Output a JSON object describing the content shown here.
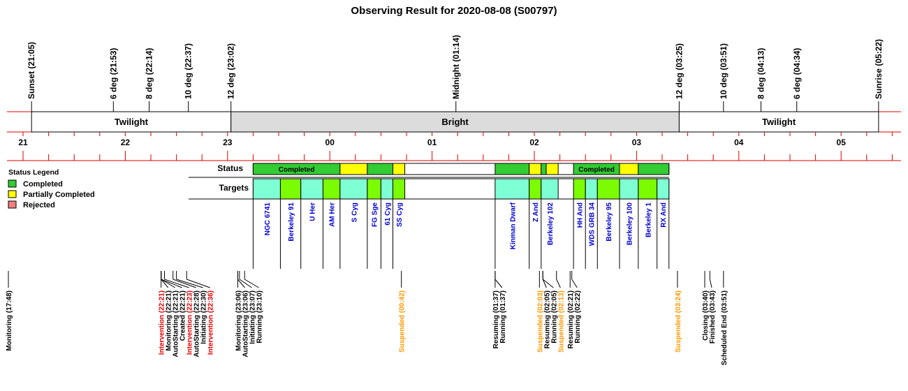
{
  "title": "Observing Result for 2020-08-08 (S00797)",
  "time_markers": [
    {
      "label": "Sunset (21:05)",
      "t": "21:05"
    },
    {
      "label": "6 deg (21:53)",
      "t": "21:53"
    },
    {
      "label": "8 deg (22:14)",
      "t": "22:14"
    },
    {
      "label": "10 deg (22:37)",
      "t": "22:37"
    },
    {
      "label": "12 deg (23:02)",
      "t": "23:02"
    },
    {
      "label": "Midnight (01:14)",
      "t": "01:14"
    },
    {
      "label": "12 deg (03:25)",
      "t": "03:25"
    },
    {
      "label": "10 deg (03:51)",
      "t": "03:51"
    },
    {
      "label": "8 deg (04:13)",
      "t": "04:13"
    },
    {
      "label": "6 deg (04:34)",
      "t": "04:34"
    },
    {
      "label": "Sunrise (05:22)",
      "t": "05:22"
    }
  ],
  "bands": [
    {
      "label": "Twilight",
      "start": "21:05",
      "end": "23:02",
      "color": "#ffffff"
    },
    {
      "label": "Bright",
      "start": "23:02",
      "end": "03:25",
      "color": "#dcdcdc"
    },
    {
      "label": "Twilight",
      "start": "03:25",
      "end": "05:22",
      "color": "#ffffff"
    }
  ],
  "hour_labels": [
    "21",
    "22",
    "23",
    "00",
    "01",
    "02",
    "03",
    "04",
    "05"
  ],
  "row_labels": {
    "status": "Status",
    "targets": "Targets"
  },
  "legend": {
    "title": "Status Legend",
    "items": [
      {
        "label": "Completed",
        "color": "#33cc33"
      },
      {
        "label": "Partially Completed",
        "color": "#ffff00"
      },
      {
        "label": "Rejected",
        "color": "#f08080"
      }
    ]
  },
  "colors": {
    "completed": "#33cc33",
    "partial": "#ffff00",
    "target_a": "#7fffd4",
    "target_b": "#7cfc00",
    "grid": "#dd0000",
    "target_text": "#0000cc",
    "intervention": "#dd0000",
    "suspended": "#ff9900"
  },
  "status_blocks": [
    {
      "start": "23:15",
      "end": "00:06",
      "status": "completed",
      "label": "Completed"
    },
    {
      "start": "00:06",
      "end": "00:22",
      "status": "partial",
      "label": ""
    },
    {
      "start": "00:22",
      "end": "00:37",
      "status": "completed",
      "label": ""
    },
    {
      "start": "00:37",
      "end": "00:44",
      "status": "partial",
      "label": ""
    },
    {
      "start": "01:37",
      "end": "01:57",
      "status": "completed",
      "label": ""
    },
    {
      "start": "01:57",
      "end": "02:04",
      "status": "partial",
      "label": ""
    },
    {
      "start": "02:04",
      "end": "02:07",
      "status": "completed",
      "label": ""
    },
    {
      "start": "02:07",
      "end": "02:14",
      "status": "partial",
      "label": ""
    },
    {
      "start": "02:23",
      "end": "02:50",
      "status": "completed",
      "label": "Completed"
    },
    {
      "start": "02:50",
      "end": "03:01",
      "status": "partial",
      "label": ""
    },
    {
      "start": "03:01",
      "end": "03:19",
      "status": "completed",
      "label": ""
    }
  ],
  "targets": [
    {
      "name": "NGC 6741",
      "start": "23:15",
      "end": "23:31",
      "fill": "a"
    },
    {
      "name": "Berkeley 91",
      "start": "23:31",
      "end": "23:43",
      "fill": "b"
    },
    {
      "name": "U Her",
      "start": "23:43",
      "end": "23:56",
      "fill": "a"
    },
    {
      "name": "AM Her",
      "start": "23:56",
      "end": "00:06",
      "fill": "b"
    },
    {
      "name": "S Cyg",
      "start": "00:06",
      "end": "00:22",
      "fill": "a"
    },
    {
      "name": "FG Sge",
      "start": "00:22",
      "end": "00:30",
      "fill": "b"
    },
    {
      "name": "61 Cyg",
      "start": "00:30",
      "end": "00:37",
      "fill": "a"
    },
    {
      "name": "SS Cyg",
      "start": "00:37",
      "end": "00:44",
      "fill": "b"
    },
    {
      "name": "Kinman Dwarf",
      "start": "01:37",
      "end": "01:57",
      "fill": "a"
    },
    {
      "name": "Z And",
      "start": "01:57",
      "end": "02:04",
      "fill": "b"
    },
    {
      "name": "Berkeley 102",
      "start": "02:04",
      "end": "02:14",
      "fill": "a"
    },
    {
      "name": "HH And",
      "start": "02:23",
      "end": "02:30",
      "fill": "b"
    },
    {
      "name": "WDS GRB 34",
      "start": "02:30",
      "end": "02:37",
      "fill": "a"
    },
    {
      "name": "Berkeley 95",
      "start": "02:37",
      "end": "02:50",
      "fill": "b"
    },
    {
      "name": "Berkeley 100",
      "start": "02:50",
      "end": "03:01",
      "fill": "a"
    },
    {
      "name": "Berkeley 1",
      "start": "03:01",
      "end": "03:12",
      "fill": "b"
    },
    {
      "name": "RX And",
      "start": "03:12",
      "end": "03:19",
      "fill": "a"
    }
  ],
  "events": [
    {
      "label": "Monitoring (17:48)",
      "t": "17:48",
      "kind": "normal"
    },
    {
      "label": "Intervention (22:21)",
      "t": "22:21",
      "kind": "intervention"
    },
    {
      "label": "Monitoring (22:21)",
      "t": "22:21",
      "kind": "normal"
    },
    {
      "label": "AutoStarting (22:21)",
      "t": "22:21",
      "kind": "normal"
    },
    {
      "label": "Created (22:21)",
      "t": "22:21",
      "kind": "normal"
    },
    {
      "label": "Intervention (22:23)",
      "t": "22:23",
      "kind": "intervention"
    },
    {
      "label": "AutoStarting (22:28)",
      "t": "22:28",
      "kind": "normal"
    },
    {
      "label": "Initiating (22:30)",
      "t": "22:30",
      "kind": "normal"
    },
    {
      "label": "Intervention (22:36)",
      "t": "22:36",
      "kind": "intervention"
    },
    {
      "label": "Monitoring (23:06)",
      "t": "23:06",
      "kind": "normal"
    },
    {
      "label": "AutoStarting (23:06)",
      "t": "23:06",
      "kind": "normal"
    },
    {
      "label": "Initiating (23:07)",
      "t": "23:07",
      "kind": "normal"
    },
    {
      "label": "Running (23:10)",
      "t": "23:10",
      "kind": "normal"
    },
    {
      "label": "Suspended (00:42)",
      "t": "00:42",
      "kind": "suspended"
    },
    {
      "label": "Resuming (01:37)",
      "t": "01:37",
      "kind": "normal"
    },
    {
      "label": "Running (01:37)",
      "t": "01:37",
      "kind": "normal"
    },
    {
      "label": "Suspended (02:03)",
      "t": "02:03",
      "kind": "suspended"
    },
    {
      "label": "Resuming (02:05)",
      "t": "02:05",
      "kind": "normal"
    },
    {
      "label": "Running (02:05)",
      "t": "02:05",
      "kind": "normal"
    },
    {
      "label": "Suspended (02:13)",
      "t": "02:13",
      "kind": "suspended"
    },
    {
      "label": "Resuming (02:21)",
      "t": "02:21",
      "kind": "normal"
    },
    {
      "label": "Running (02:22)",
      "t": "02:22",
      "kind": "normal"
    },
    {
      "label": "Suspended (03:24)",
      "t": "03:24",
      "kind": "suspended"
    },
    {
      "label": "Closing (03:40)",
      "t": "03:40",
      "kind": "normal"
    },
    {
      "label": "Finished (03:43)",
      "t": "03:43",
      "kind": "normal"
    },
    {
      "label": "Scheduled End (03:51)",
      "t": "03:51",
      "kind": "normal"
    }
  ]
}
